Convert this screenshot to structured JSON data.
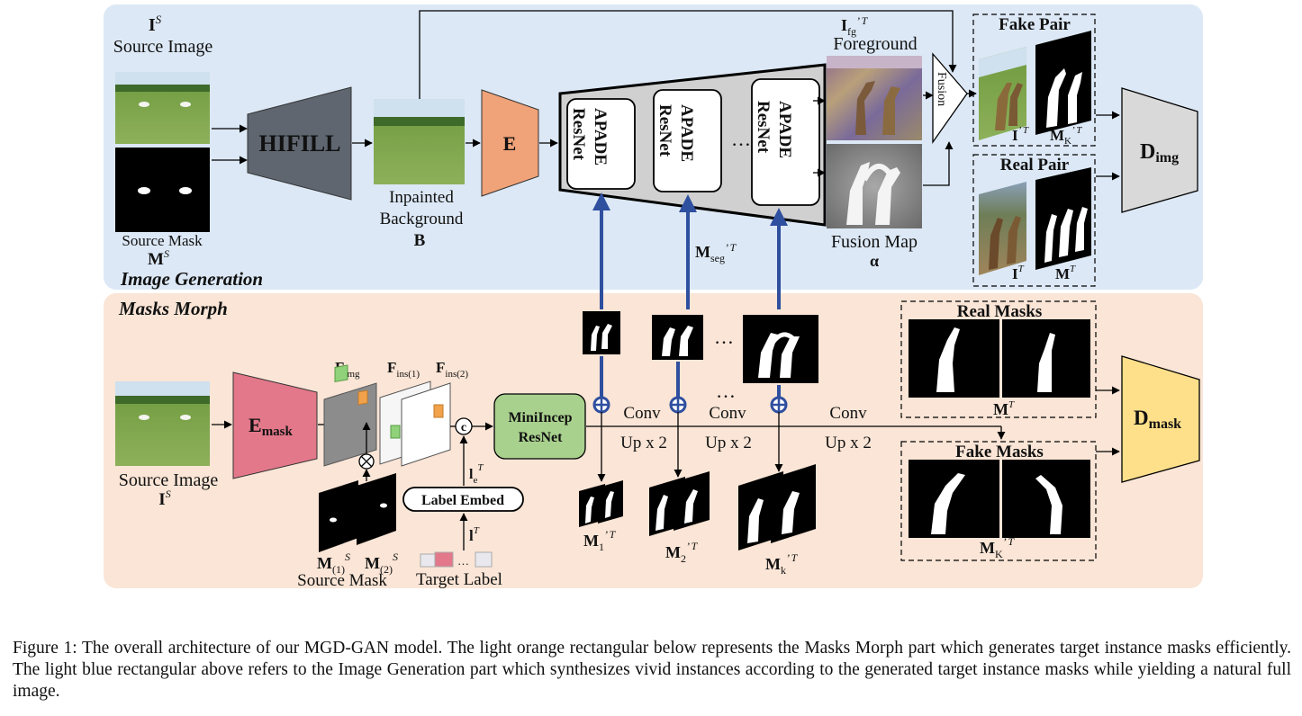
{
  "sections": {
    "image_generation": "Image Generation",
    "masks_morph": "Masks Morph"
  },
  "labels": {
    "source_image_sym": "I",
    "source_image_sup": "S",
    "source_image": "Source Image",
    "source_mask": "Source Mask",
    "source_mask_sym": "M",
    "source_mask_sup": "S",
    "hifill": "HIFILL",
    "inpainted_line1": "Inpainted",
    "inpainted_line2": "Background",
    "inpainted_sym": "B",
    "encoder_e": "E",
    "apade_line1": "APADE",
    "apade_line2": "ResNet",
    "dots": "…",
    "fg_sym": "I",
    "fg_sub": "fg",
    "fg_sup": "’ T",
    "foreground": "Foreground",
    "fusion": "Fusion",
    "fusion_map": "Fusion Map",
    "alpha": "α",
    "mseg_sym": "M",
    "mseg_sub": "seg",
    "mseg_sup": "’ T",
    "fake_pair": "Fake Pair",
    "real_pair": "Real Pair",
    "fake_pair_i": "I",
    "fake_pair_i_sup": "’ T",
    "fake_pair_m": "M",
    "fake_pair_m_sub": "K",
    "fake_pair_m_sup": "’ T",
    "real_pair_i": "I",
    "real_pair_i_sup": "T",
    "real_pair_m": "M",
    "real_pair_m_sup": "T",
    "d_img": "D",
    "d_img_sub": "img",
    "e_mask": "E",
    "e_mask_sub": "mask",
    "f_img": "F",
    "f_img_sub": "img",
    "f_ins1": "F",
    "f_ins1_sub": "ins(1)",
    "f_ins2": "F",
    "f_ins2_sub": "ins(2)",
    "concat": "c",
    "mini_line1": "MiniIncep",
    "mini_line2": "ResNet",
    "conv": "Conv",
    "upx2": "Up x 2",
    "le_sym": "l",
    "le_sub": "e",
    "le_sup": "T",
    "label_embed": "Label Embed",
    "lt_sym": "l",
    "lt_sup": "T",
    "target_label": "Target Label",
    "m1s": "M",
    "m1s_sub": "(1)",
    "m1s_sup": "S",
    "m2s": "M",
    "m2s_sub": "(2)",
    "m2s_sup": "S",
    "m1": "M",
    "m1_sub": "1",
    "m1_sup": "’ T",
    "m2": "M",
    "m2_sub": "2",
    "m2_sup": "’ T",
    "mk": "M",
    "mk_sub": "k",
    "mk_sup": "’ T",
    "real_masks": "Real Masks",
    "real_masks_m": "M",
    "real_masks_sup": "T",
    "fake_masks": "Fake Masks",
    "fake_masks_m": "M",
    "fake_masks_sub": "K",
    "fake_masks_sup": "’ T",
    "d_mask": "D",
    "d_mask_sub": "mask"
  },
  "caption": "Figure 1: The overall architecture of our MGD-GAN model. The light orange rectangular below represents the Masks Morph part which generates target instance masks efficiently. The light blue rectangular above refers to the Image Generation part which synthesizes vivid instances according to the generated target instance masks while yielding a natural full image.",
  "colors": {
    "top_panel": "#dce8f5",
    "bottom_panel": "#fae5d6",
    "hifill": "#5f6670",
    "encoder_e": "#f0a278",
    "e_mask": "#e2788a",
    "mini": "#a9d18e",
    "d_img": "#d9d9d9",
    "d_mask": "#ffe08a",
    "blue_arrow": "#2f4f9f",
    "fake_title": "#5b9bd5",
    "real_title": "#c00000"
  }
}
